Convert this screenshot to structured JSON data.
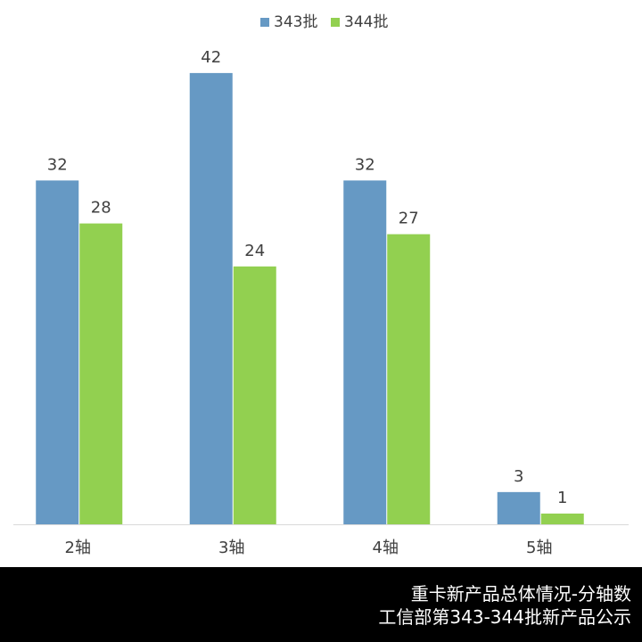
{
  "chart_data": {
    "type": "bar",
    "categories": [
      "2轴",
      "3轴",
      "4轴",
      "5轴"
    ],
    "series": [
      {
        "name": "343批",
        "values": [
          32,
          42,
          32,
          3
        ],
        "color": "#6699C4"
      },
      {
        "name": "344批",
        "values": [
          28,
          24,
          27,
          1
        ],
        "color": "#92D050"
      }
    ],
    "title": "",
    "xlabel": "",
    "ylabel": "",
    "ylim": [
      0,
      45
    ],
    "grid": false,
    "legend_position": "top"
  },
  "footer": {
    "line1": "重卡新产品总体情况-分轴数",
    "line2": "工信部第343-344批新产品公示"
  }
}
